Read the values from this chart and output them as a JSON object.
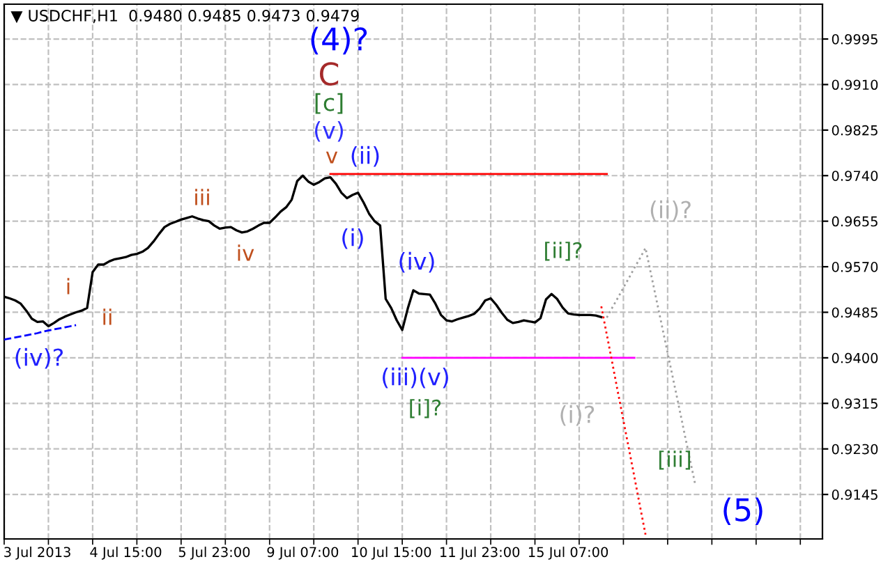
{
  "chart_data": {
    "type": "line",
    "title": "▼ USDCHF,H1  0.9480 0.9485 0.9473 0.9479",
    "categories": [
      null,
      null,
      null,
      null,
      null,
      null,
      "3 Jul 2013",
      null,
      null,
      null,
      null,
      null,
      null,
      null,
      null,
      null,
      null,
      null,
      null,
      null,
      null,
      null,
      "4 Jul 15:00",
      null,
      null,
      null,
      null,
      null,
      null,
      null,
      null,
      null,
      null,
      null,
      null,
      null,
      null,
      null,
      "5 Jul 23:00",
      null,
      null,
      null,
      null,
      null,
      null,
      null,
      null,
      null,
      null,
      null,
      null,
      null,
      null,
      null,
      "9 Jul 07:00",
      null,
      null,
      null,
      null,
      null,
      null,
      null,
      null,
      null,
      null,
      null,
      null,
      null,
      null,
      null,
      "10 Jul 15:00",
      null,
      null,
      null,
      null,
      null,
      null,
      null,
      null,
      null,
      null,
      null,
      null,
      null,
      null,
      null,
      "11 Jul 23:00",
      null,
      null,
      null,
      null,
      null,
      null,
      null,
      null,
      null,
      null,
      null,
      null,
      null,
      null,
      null,
      "15 Jul 07:00",
      null,
      null,
      null,
      null,
      null,
      null,
      null,
      null,
      null,
      null,
      null,
      null,
      null,
      null,
      null,
      null,
      null,
      null,
      null,
      null,
      null,
      null,
      null,
      null,
      null,
      null,
      null,
      null,
      null,
      null,
      null,
      null,
      null,
      null,
      null,
      null,
      null,
      null,
      null,
      null,
      null,
      null,
      null,
      null,
      null,
      null
    ],
    "ylim": [
      0.9062,
      1.006
    ],
    "yticks": [
      {
        "value": 0.9145,
        "label": "0.9145"
      },
      {
        "value": 0.923,
        "label": "0.9230"
      },
      {
        "value": 0.9315,
        "label": "0.9315"
      },
      {
        "value": 0.94,
        "label": "0.9400"
      },
      {
        "value": 0.9485,
        "label": "0.9485"
      },
      {
        "value": 0.957,
        "label": "0.9570"
      },
      {
        "value": 0.9655,
        "label": "0.9655"
      },
      {
        "value": 0.974,
        "label": "0.9740"
      },
      {
        "value": 0.9825,
        "label": "0.9825"
      },
      {
        "value": 0.991,
        "label": "0.9910"
      },
      {
        "value": 0.9995,
        "label": "0.9995"
      }
    ],
    "grid": true,
    "legend": false,
    "marker": "none",
    "series": [
      {
        "color": "#000000",
        "line_style": "solid",
        "values": [
          0.9514,
          0.9511,
          0.9507,
          0.9501,
          0.9488,
          0.9473,
          0.9467,
          0.9468,
          0.9459,
          0.9465,
          0.9472,
          0.9477,
          0.9481,
          0.9485,
          0.9488,
          0.9493,
          0.956,
          0.9574,
          0.9574,
          0.958,
          0.9584,
          0.9586,
          0.9588,
          0.9592,
          0.9594,
          0.9598,
          0.9605,
          0.9617,
          0.9631,
          0.9644,
          0.965,
          0.9654,
          0.9658,
          0.9661,
          0.9664,
          0.966,
          0.9657,
          0.9655,
          0.9647,
          0.9641,
          0.9643,
          0.9644,
          0.9638,
          0.9634,
          0.9636,
          0.9641,
          0.9647,
          0.9652,
          0.9652,
          0.9662,
          0.9673,
          0.9681,
          0.9695,
          0.973,
          0.974,
          0.9729,
          0.9723,
          0.9728,
          0.9735,
          0.9737,
          0.9725,
          0.9708,
          0.9698,
          0.9704,
          0.9708,
          0.969,
          0.9669,
          0.9655,
          0.9647,
          0.951,
          0.9493,
          0.947,
          0.9452,
          0.9492,
          0.9526,
          0.952,
          0.9519,
          0.9518,
          0.9501,
          0.948,
          0.947,
          0.9468,
          0.9472,
          0.9475,
          0.9478,
          0.9482,
          0.9492,
          0.9507,
          0.9511,
          0.9499,
          0.9484,
          0.9471,
          0.9465,
          0.9467,
          0.947,
          0.9468,
          0.9466,
          0.9474,
          0.9509,
          0.9519,
          0.951,
          0.9494,
          0.9483,
          0.9481,
          0.948,
          0.948,
          0.948,
          0.9479,
          0.9476,
          null,
          null,
          null,
          null,
          null,
          null,
          null,
          null,
          null,
          null,
          null,
          null,
          null,
          null,
          null,
          null,
          null,
          null,
          null,
          null,
          null,
          null,
          null,
          null,
          null,
          null,
          null,
          null,
          null,
          null,
          null,
          null,
          null,
          null,
          null,
          null,
          null,
          null,
          null,
          null
        ]
      },
      {
        "color": "#ff0000",
        "line_style": "solid",
        "values": [
          null,
          null,
          null,
          null,
          null,
          null,
          null,
          null,
          null,
          null,
          null,
          null,
          null,
          null,
          null,
          null,
          null,
          null,
          null,
          null,
          null,
          null,
          null,
          null,
          null,
          null,
          null,
          null,
          null,
          null,
          null,
          null,
          null,
          null,
          null,
          null,
          null,
          null,
          null,
          null,
          null,
          null,
          null,
          null,
          null,
          null,
          null,
          null,
          null,
          null,
          null,
          null,
          null,
          null,
          null,
          null,
          null,
          null,
          null,
          0.9743,
          0.9743,
          0.9743,
          0.9743,
          0.9743,
          0.9743,
          0.9743,
          0.9743,
          0.9743,
          0.9743,
          0.9743,
          0.9743,
          0.9743,
          0.9743,
          0.9743,
          0.9743,
          0.9743,
          0.9743,
          0.9743,
          0.9743,
          0.9743,
          0.9743,
          0.9743,
          0.9743,
          0.9743,
          0.9743,
          0.9743,
          0.9743,
          0.9743,
          0.9743,
          0.9743,
          0.9743,
          0.9743,
          0.9743,
          0.9743,
          0.9743,
          0.9743,
          0.9743,
          0.9743,
          0.9743,
          0.9743,
          0.9743,
          0.9743,
          0.9743,
          0.9743,
          0.9743,
          0.9743,
          0.9743,
          0.9743,
          0.9743,
          0.9743,
          null,
          null,
          null,
          null,
          null,
          null,
          null,
          null,
          null,
          null,
          null,
          null,
          null,
          null,
          null,
          null,
          null,
          null,
          null,
          null,
          null,
          null,
          null,
          null,
          null,
          null,
          null,
          null,
          null,
          null,
          null,
          null,
          null,
          null,
          null,
          null,
          null,
          null,
          null
        ]
      },
      {
        "color": "#ff00ff",
        "line_style": "solid",
        "values": [
          null,
          null,
          null,
          null,
          null,
          null,
          null,
          null,
          null,
          null,
          null,
          null,
          null,
          null,
          null,
          null,
          null,
          null,
          null,
          null,
          null,
          null,
          null,
          null,
          null,
          null,
          null,
          null,
          null,
          null,
          null,
          null,
          null,
          null,
          null,
          null,
          null,
          null,
          null,
          null,
          null,
          null,
          null,
          null,
          null,
          null,
          null,
          null,
          null,
          null,
          null,
          null,
          null,
          null,
          null,
          null,
          null,
          null,
          null,
          null,
          null,
          null,
          null,
          null,
          null,
          null,
          null,
          null,
          null,
          null,
          null,
          null,
          0.94,
          0.94,
          0.94,
          0.94,
          0.94,
          0.94,
          0.94,
          0.94,
          0.94,
          0.94,
          0.94,
          0.94,
          0.94,
          0.94,
          0.94,
          0.94,
          0.94,
          0.94,
          0.94,
          0.94,
          0.94,
          0.94,
          0.94,
          0.94,
          0.94,
          0.94,
          0.94,
          0.94,
          0.94,
          0.94,
          0.94,
          0.94,
          0.94,
          0.94,
          0.94,
          0.94,
          0.94,
          0.94,
          0.94,
          0.94,
          0.94,
          0.94,
          0.94,
          null,
          null,
          null,
          null,
          null,
          null,
          null,
          null,
          null,
          null,
          null,
          null,
          null,
          null,
          null,
          null,
          null,
          null,
          null,
          null,
          null,
          null,
          null,
          null,
          null,
          null,
          null,
          null,
          null,
          null,
          null,
          null,
          null,
          null
        ]
      },
      {
        "color": "#0000ff",
        "line_style": "dashed",
        "values": [
          0.9434,
          0.9436,
          0.9438,
          0.944,
          0.9442,
          0.9444,
          0.9446,
          0.9449,
          0.9451,
          0.9453,
          0.9455,
          0.9457,
          0.9459,
          0.9461,
          null,
          null,
          null,
          null,
          null,
          null,
          null,
          null,
          null,
          null,
          null,
          null,
          null,
          null,
          null,
          null,
          null,
          null,
          null,
          null,
          null,
          null,
          null,
          null,
          null,
          null,
          null,
          null,
          null,
          null,
          null,
          null,
          null,
          null,
          null,
          null,
          null,
          null,
          null,
          null,
          null,
          null,
          null,
          null,
          null,
          null,
          null,
          null,
          null,
          null,
          null,
          null,
          null,
          null,
          null,
          null,
          null,
          null,
          null,
          null,
          null,
          null,
          null,
          null,
          null,
          null,
          null,
          null,
          null,
          null,
          null,
          null,
          null,
          null,
          null,
          null,
          null,
          null,
          null,
          null,
          null,
          null,
          null,
          null,
          null,
          null,
          null,
          null,
          null,
          null,
          null,
          null,
          null,
          null,
          null,
          null,
          null,
          null,
          null,
          null,
          null,
          null,
          null,
          null,
          null,
          null,
          null,
          null,
          null,
          null,
          null,
          null,
          null,
          null,
          null,
          null,
          null,
          null,
          null,
          null,
          null,
          null,
          null,
          null,
          null,
          null,
          null,
          null,
          null,
          null,
          null,
          null,
          null,
          null,
          null
        ]
      },
      {
        "color": "#ff0000",
        "line_style": "dotted",
        "values": [
          null,
          null,
          null,
          null,
          null,
          null,
          null,
          null,
          null,
          null,
          null,
          null,
          null,
          null,
          null,
          null,
          null,
          null,
          null,
          null,
          null,
          null,
          null,
          null,
          null,
          null,
          null,
          null,
          null,
          null,
          null,
          null,
          null,
          null,
          null,
          null,
          null,
          null,
          null,
          null,
          null,
          null,
          null,
          null,
          null,
          null,
          null,
          null,
          null,
          null,
          null,
          null,
          null,
          null,
          null,
          null,
          null,
          null,
          null,
          null,
          null,
          null,
          null,
          null,
          null,
          null,
          null,
          null,
          null,
          null,
          null,
          null,
          null,
          null,
          null,
          null,
          null,
          null,
          null,
          null,
          null,
          null,
          null,
          null,
          null,
          null,
          null,
          null,
          null,
          null,
          null,
          null,
          null,
          null,
          null,
          null,
          null,
          null,
          null,
          null,
          null,
          null,
          null,
          null,
          null,
          null,
          null,
          null,
          0.9496,
          0.9443,
          0.939,
          0.9336,
          0.9283,
          0.923,
          0.9177,
          0.9123,
          0.907,
          null,
          null,
          null,
          null,
          null,
          null,
          null,
          null,
          null,
          null,
          null,
          null,
          null,
          null,
          null,
          null,
          null,
          null,
          null,
          null,
          null,
          null,
          null,
          null,
          null,
          null,
          null,
          null,
          null,
          null,
          null,
          null
        ]
      },
      {
        "color": "#a0a0a0",
        "line_style": "dotted",
        "values": [
          null,
          null,
          null,
          null,
          null,
          null,
          null,
          null,
          null,
          null,
          null,
          null,
          null,
          null,
          null,
          null,
          null,
          null,
          null,
          null,
          null,
          null,
          null,
          null,
          null,
          null,
          null,
          null,
          null,
          null,
          null,
          null,
          null,
          null,
          null,
          null,
          null,
          null,
          null,
          null,
          null,
          null,
          null,
          null,
          null,
          null,
          null,
          null,
          null,
          null,
          null,
          null,
          null,
          null,
          null,
          null,
          null,
          null,
          null,
          null,
          null,
          null,
          null,
          null,
          null,
          null,
          null,
          null,
          null,
          null,
          null,
          null,
          null,
          null,
          null,
          null,
          null,
          null,
          null,
          null,
          null,
          null,
          null,
          null,
          null,
          null,
          null,
          null,
          null,
          null,
          null,
          null,
          null,
          null,
          null,
          null,
          null,
          null,
          null,
          null,
          null,
          null,
          null,
          null,
          null,
          null,
          null,
          null,
          null,
          0.9475,
          0.9494,
          0.9512,
          0.9531,
          0.9549,
          0.9568,
          0.9586,
          0.9605,
          0.9556,
          0.9507,
          0.9458,
          0.9409,
          0.936,
          0.9311,
          0.9261,
          0.9212,
          0.9163,
          null,
          null,
          null,
          null,
          null,
          null,
          null,
          null,
          null,
          null,
          null,
          null,
          null,
          null,
          null,
          null,
          null,
          null,
          null,
          null,
          null,
          null,
          null
        ]
      }
    ],
    "annotations": [
      "(4)?",
      "C",
      "[c]",
      "(v)",
      "v",
      "(ii)",
      "(i)",
      "(iv)",
      "(iii)(v)",
      "[i]?",
      "[ii]?",
      "(ii)?",
      "(i)?",
      "[iii]",
      "(5)",
      "iii",
      "iv",
      "i",
      "ii",
      "(iv)?"
    ]
  }
}
